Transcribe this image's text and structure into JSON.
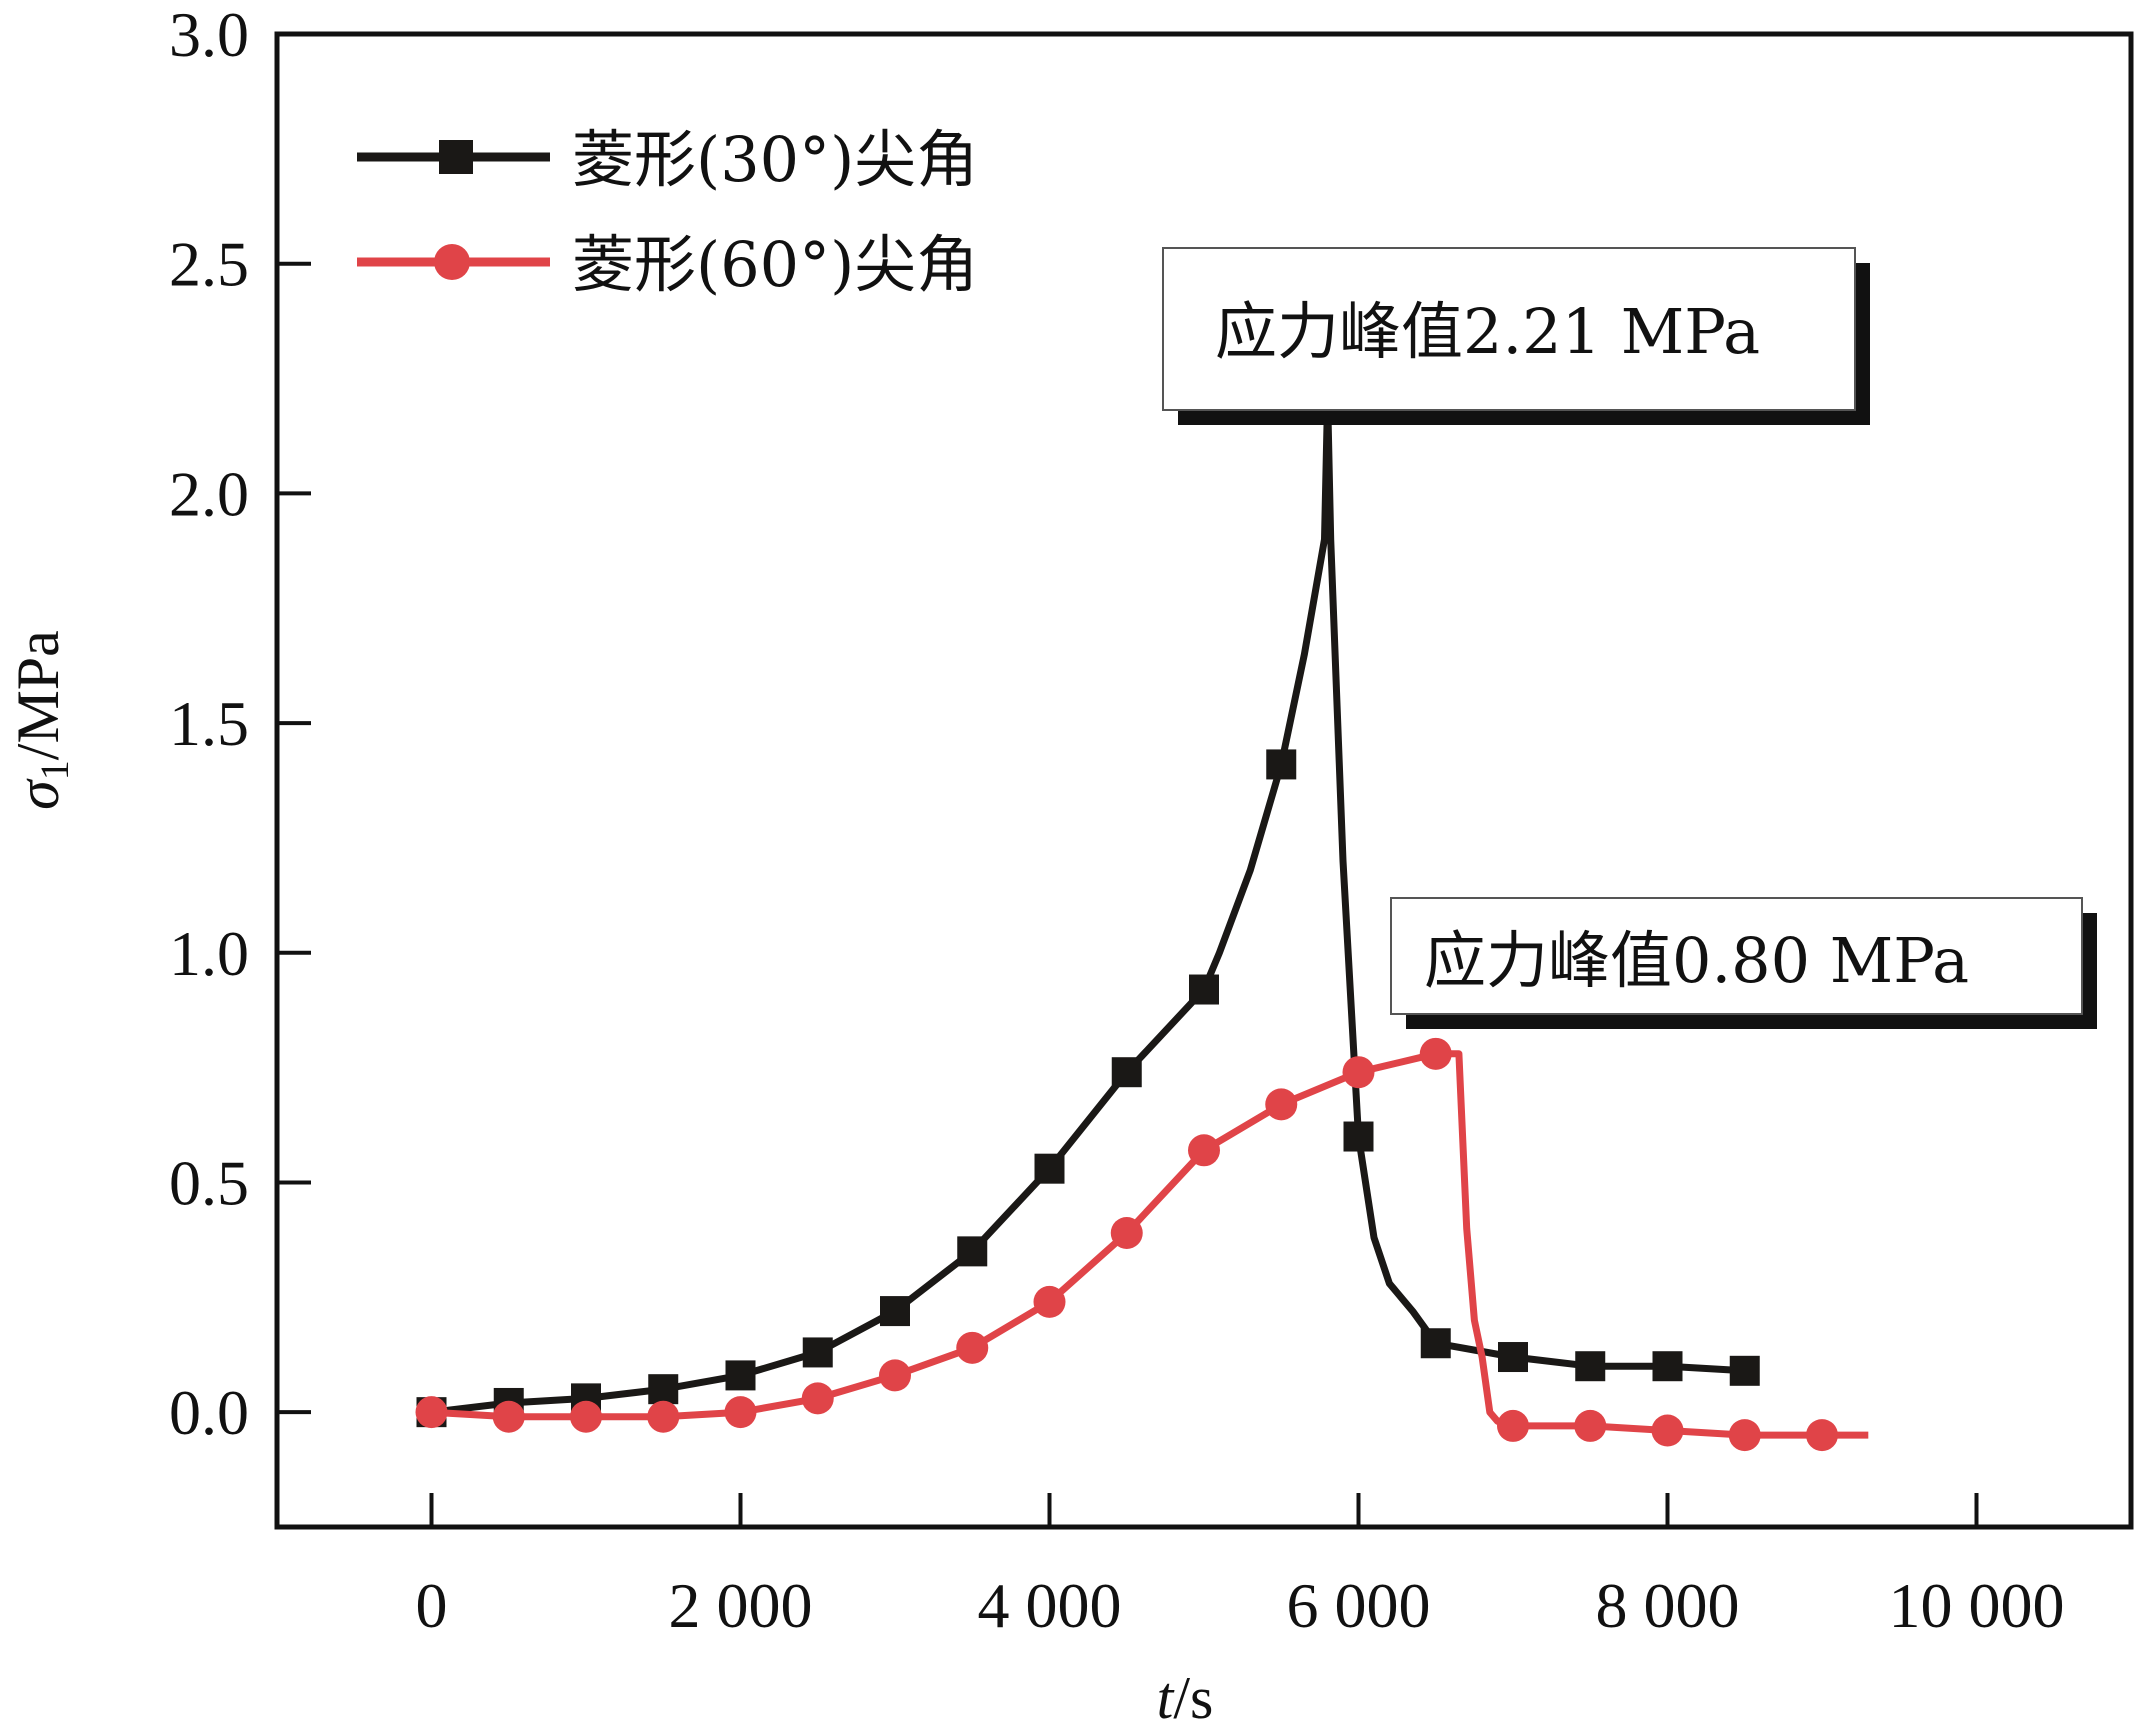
{
  "chart_data": {
    "type": "line",
    "title": "",
    "xlabel_var": "t",
    "xlabel_unit": "/s",
    "ylabel_var": "σ",
    "ylabel_sub": "1",
    "ylabel_unit": "/MPa",
    "xlim": [
      -1000,
      11000
    ],
    "ylim": [
      -0.25,
      3.0
    ],
    "xticks": [
      0,
      2000,
      4000,
      6000,
      8000,
      10000
    ],
    "xtick_labels": [
      "0",
      "2 000",
      "4 000",
      "6 000",
      "8 000",
      "10 000"
    ],
    "yticks": [
      0.0,
      0.5,
      1.0,
      1.5,
      2.0,
      2.5,
      3.0
    ],
    "ytick_labels": [
      "0.0",
      "0.5",
      "1.0",
      "1.5",
      "2.0",
      "2.5",
      "3.0"
    ],
    "grid": false,
    "legend_position": "top-left",
    "series": [
      {
        "name": "菱形(30°)尖角",
        "color": "#1a1816",
        "marker": "square",
        "marker_x": [
          0,
          500,
          1000,
          1500,
          2000,
          2500,
          3000,
          3500,
          4000,
          4500,
          5000,
          5500,
          6000,
          6500,
          7000,
          7500,
          8000,
          8500
        ],
        "marker_y": [
          0.0,
          0.02,
          0.03,
          0.05,
          0.08,
          0.13,
          0.22,
          0.35,
          0.53,
          0.74,
          0.92,
          1.41,
          0.6,
          0.15,
          0.12,
          0.1,
          0.1,
          0.09
        ],
        "line_x": [
          0,
          500,
          1000,
          1500,
          2000,
          2500,
          3000,
          3500,
          4000,
          4500,
          5000,
          5100,
          5300,
          5500,
          5650,
          5780,
          5800,
          5820,
          5900,
          6000,
          6100,
          6200,
          6350,
          6500,
          7000,
          7500,
          8000,
          8500
        ],
        "line_y": [
          0.0,
          0.02,
          0.03,
          0.05,
          0.08,
          0.13,
          0.22,
          0.35,
          0.53,
          0.74,
          0.92,
          1.0,
          1.18,
          1.41,
          1.65,
          1.9,
          2.21,
          1.9,
          1.2,
          0.6,
          0.38,
          0.28,
          0.22,
          0.15,
          0.12,
          0.1,
          0.1,
          0.09
        ]
      },
      {
        "name": "菱形(60°)尖角",
        "color": "#e04448",
        "marker": "circle",
        "marker_x": [
          0,
          500,
          1000,
          1500,
          2000,
          2500,
          3000,
          3500,
          4000,
          4500,
          5000,
          5500,
          6000,
          6500,
          7000,
          7500,
          8000,
          8500,
          9000
        ],
        "marker_y": [
          0.0,
          -0.01,
          -0.01,
          -0.01,
          0.0,
          0.03,
          0.08,
          0.14,
          0.24,
          0.39,
          0.57,
          0.67,
          0.74,
          0.78,
          -0.03,
          -0.03,
          -0.04,
          -0.05,
          -0.05
        ],
        "line_x": [
          0,
          500,
          1000,
          1500,
          2000,
          2500,
          3000,
          3500,
          4000,
          4500,
          5000,
          5500,
          6000,
          6500,
          6650,
          6700,
          6750,
          6800,
          6850,
          6900,
          7000,
          7500,
          8000,
          8500,
          9000,
          9300
        ],
        "line_y": [
          0.0,
          -0.01,
          -0.01,
          -0.01,
          0.0,
          0.03,
          0.08,
          0.14,
          0.24,
          0.39,
          0.57,
          0.67,
          0.74,
          0.78,
          0.78,
          0.4,
          0.2,
          0.12,
          0.0,
          -0.02,
          -0.03,
          -0.03,
          -0.04,
          -0.05,
          -0.05,
          -0.05
        ]
      }
    ],
    "annotations": [
      {
        "text": "应力峰值2.21 MPa",
        "target_series": 0,
        "peak_value": 2.21
      },
      {
        "text": "应力峰值0.80 MPa",
        "target_series": 1,
        "peak_value": 0.8
      }
    ]
  }
}
